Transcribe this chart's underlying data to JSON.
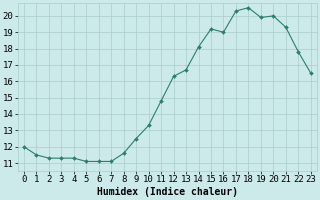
{
  "x": [
    0,
    1,
    2,
    3,
    4,
    5,
    6,
    7,
    8,
    9,
    10,
    11,
    12,
    13,
    14,
    15,
    16,
    17,
    18,
    19,
    20,
    21,
    22,
    23
  ],
  "y": [
    12.0,
    11.5,
    11.3,
    11.3,
    11.3,
    11.1,
    11.1,
    11.1,
    11.6,
    12.5,
    13.3,
    14.8,
    16.3,
    16.7,
    18.1,
    19.2,
    19.0,
    20.3,
    20.5,
    19.9,
    20.0,
    19.3,
    17.8,
    16.5
  ],
  "line_color": "#2e7d6e",
  "marker": "D",
  "marker_size": 2.0,
  "bg_color": "#cceaea",
  "grid_color": "#aacccc",
  "xlabel": "Humidex (Indice chaleur)",
  "xlim": [
    -0.5,
    23.5
  ],
  "ylim_min": 10.5,
  "ylim_max": 20.8,
  "yticks": [
    11,
    12,
    13,
    14,
    15,
    16,
    17,
    18,
    19,
    20
  ],
  "xtick_labels": [
    "0",
    "1",
    "2",
    "3",
    "4",
    "5",
    "6",
    "7",
    "8",
    "9",
    "10",
    "11",
    "12",
    "13",
    "14",
    "15",
    "16",
    "17",
    "18",
    "19",
    "20",
    "21",
    "22",
    "23"
  ],
  "font_size": 6.5
}
